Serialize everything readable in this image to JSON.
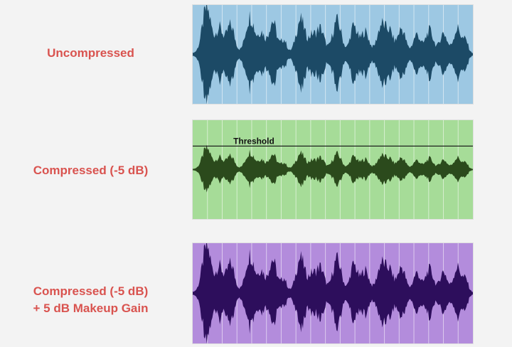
{
  "rows": [
    {
      "label_lines": [
        "Uncompressed"
      ],
      "bg": "#9dc8e3",
      "wave": "#1c4a66",
      "gain": 1.0,
      "threshold": false,
      "threshold_label": ""
    },
    {
      "label_lines": [
        "Compressed (-5 dB)"
      ],
      "bg": "#a6dc98",
      "wave": "#2b4a1c",
      "gain": 0.46,
      "threshold": true,
      "threshold_label": "Threshold"
    },
    {
      "label_lines": [
        "Compressed (-5 dB)",
        "+ 5 dB Makeup Gain"
      ],
      "bg": "#b38cdc",
      "wave": "#2d0e5c",
      "gain": 1.0,
      "threshold": false,
      "threshold_label": ""
    }
  ]
}
